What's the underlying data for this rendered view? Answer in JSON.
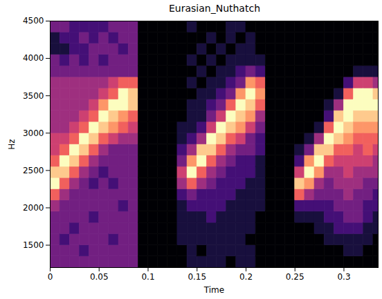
{
  "chart_data": {
    "type": "heatmap",
    "title": "Eurasian_Nuthatch",
    "x_label": "Time",
    "y_label": "Hz",
    "color": "magma",
    "xlim": [
      0,
      0.335
    ],
    "ylim": [
      1200,
      4500
    ],
    "xticks": [
      0,
      0.05,
      0.1,
      0.15,
      0.2,
      0.25,
      0.3
    ],
    "yticks": [
      1500,
      2000,
      2500,
      3000,
      3500,
      4000,
      4500
    ],
    "zlim": [
      0,
      9
    ],
    "x_edges": [
      0,
      0.01,
      0.02,
      0.03,
      0.04,
      0.05,
      0.06,
      0.07,
      0.08,
      0.09,
      0.1,
      0.11,
      0.12,
      0.13,
      0.14,
      0.15,
      0.16,
      0.17,
      0.18,
      0.19,
      0.2,
      0.21,
      0.22,
      0.23,
      0.24,
      0.25,
      0.26,
      0.27,
      0.28,
      0.29,
      0.3,
      0.31,
      0.32,
      0.33,
      0.34
    ],
    "y_edges": [
      1200,
      1350,
      1500,
      1650,
      1800,
      1950,
      2100,
      2250,
      2400,
      2550,
      2700,
      2850,
      3000,
      3150,
      3300,
      3450,
      3600,
      3750,
      3900,
      4050,
      4200,
      4350,
      4500
    ],
    "cells": [
      [
        3,
        3,
        3,
        3,
        3,
        4,
        6,
        9,
        8,
        6,
        5,
        5,
        4,
        4,
        4,
        4,
        4,
        3,
        3,
        1,
        1,
        3
      ],
      [
        3,
        3,
        2,
        3,
        3,
        3,
        4,
        6,
        8,
        9,
        6,
        5,
        4,
        4,
        4,
        4,
        4,
        3,
        2,
        1,
        2,
        3
      ],
      [
        3,
        3,
        3,
        2,
        3,
        3,
        3,
        4,
        6,
        8,
        9,
        6,
        5,
        4,
        4,
        4,
        4,
        3,
        3,
        2,
        2,
        2
      ],
      [
        3,
        2,
        3,
        3,
        3,
        3,
        3,
        3,
        4,
        6,
        8,
        9,
        6,
        5,
        4,
        4,
        4,
        3,
        2,
        2,
        3,
        2
      ],
      [
        3,
        3,
        3,
        3,
        2,
        3,
        3,
        2,
        3,
        4,
        6,
        8,
        9,
        6,
        5,
        4,
        4,
        3,
        3,
        3,
        2,
        2
      ],
      [
        3,
        3,
        3,
        3,
        3,
        3,
        3,
        3,
        2,
        3,
        4,
        6,
        8,
        9,
        7,
        5,
        4,
        3,
        2,
        3,
        3,
        2
      ],
      [
        3,
        3,
        2,
        3,
        3,
        3,
        3,
        2,
        3,
        3,
        3,
        5,
        7,
        8,
        9,
        6,
        5,
        3,
        3,
        3,
        2,
        3
      ],
      [
        3,
        3,
        3,
        3,
        3,
        2,
        3,
        3,
        3,
        3,
        3,
        4,
        6,
        7,
        9,
        9,
        6,
        3,
        3,
        2,
        3,
        3
      ],
      [
        3,
        3,
        3,
        3,
        3,
        3,
        3,
        3,
        3,
        3,
        3,
        4,
        5,
        6,
        8,
        8,
        6,
        3,
        3,
        3,
        3,
        3
      ],
      [
        0,
        0,
        0,
        0,
        0,
        0,
        0,
        0,
        0,
        0,
        0,
        0,
        0,
        0,
        0,
        0,
        0,
        0,
        0,
        0,
        0,
        0
      ],
      [
        0,
        0,
        0,
        0,
        0,
        0,
        0,
        0,
        0,
        0,
        0,
        0,
        0,
        0,
        0,
        0,
        0,
        0,
        0,
        0,
        0,
        0
      ],
      [
        0,
        0,
        0,
        0,
        0,
        0,
        0,
        0,
        0,
        0,
        0,
        0,
        0,
        0,
        0,
        0,
        0,
        0,
        0,
        0,
        0,
        0
      ],
      [
        0,
        0,
        0,
        0,
        0,
        0,
        0,
        0,
        0,
        0,
        0,
        0,
        0,
        0,
        0,
        0,
        0,
        0,
        0,
        0,
        0,
        0
      ],
      [
        0,
        0,
        1,
        1,
        1,
        1,
        2,
        4,
        5,
        3,
        2,
        1,
        1,
        0,
        0,
        0,
        0,
        0,
        0,
        0,
        0,
        0
      ],
      [
        1,
        1,
        1,
        1,
        1,
        2,
        3,
        6,
        9,
        7,
        4,
        2,
        1,
        1,
        1,
        0,
        1,
        0,
        1,
        0,
        0,
        1
      ],
      [
        1,
        0,
        1,
        1,
        1,
        2,
        2,
        4,
        6,
        9,
        8,
        4,
        2,
        1,
        1,
        1,
        0,
        1,
        0,
        1,
        0,
        0
      ],
      [
        1,
        1,
        1,
        1,
        2,
        2,
        2,
        3,
        4,
        6,
        8,
        9,
        5,
        3,
        2,
        1,
        1,
        0,
        1,
        0,
        1,
        0
      ],
      [
        1,
        1,
        1,
        1,
        1,
        2,
        2,
        2,
        3,
        4,
        6,
        8,
        9,
        5,
        3,
        2,
        1,
        1,
        0,
        1,
        0,
        0
      ],
      [
        0,
        1,
        1,
        1,
        1,
        1,
        2,
        2,
        2,
        3,
        4,
        6,
        8,
        9,
        6,
        3,
        2,
        1,
        1,
        0,
        1,
        1
      ],
      [
        1,
        1,
        1,
        1,
        1,
        1,
        1,
        2,
        2,
        2,
        3,
        5,
        7,
        8,
        9,
        7,
        3,
        2,
        1,
        1,
        0,
        1
      ],
      [
        1,
        1,
        0,
        1,
        1,
        1,
        1,
        1,
        2,
        2,
        3,
        3,
        5,
        7,
        8,
        9,
        7,
        3,
        1,
        1,
        1,
        0
      ],
      [
        0,
        0,
        0,
        0,
        0,
        1,
        1,
        1,
        1,
        1,
        2,
        2,
        3,
        4,
        6,
        7,
        6,
        2,
        1,
        0,
        0,
        0
      ],
      [
        0,
        0,
        0,
        0,
        0,
        0,
        0,
        0,
        0,
        0,
        0,
        0,
        0,
        0,
        0,
        0,
        0,
        0,
        0,
        0,
        0,
        0
      ],
      [
        0,
        0,
        0,
        0,
        0,
        0,
        0,
        0,
        0,
        0,
        0,
        0,
        0,
        0,
        0,
        0,
        0,
        0,
        0,
        0,
        0,
        0
      ],
      [
        0,
        0,
        0,
        0,
        0,
        0,
        0,
        0,
        0,
        0,
        0,
        0,
        0,
        0,
        0,
        0,
        0,
        0,
        0,
        0,
        0,
        0
      ],
      [
        0,
        0,
        0,
        0,
        1,
        2,
        6,
        8,
        5,
        2,
        1,
        0,
        0,
        0,
        0,
        0,
        0,
        0,
        0,
        0,
        0,
        0
      ],
      [
        0,
        0,
        0,
        0,
        1,
        2,
        4,
        7,
        9,
        7,
        3,
        1,
        0,
        0,
        0,
        0,
        0,
        0,
        0,
        0,
        0,
        0
      ],
      [
        0,
        0,
        0,
        1,
        1,
        2,
        3,
        4,
        7,
        9,
        8,
        4,
        1,
        0,
        0,
        0,
        0,
        0,
        0,
        0,
        0,
        0
      ],
      [
        0,
        0,
        1,
        1,
        2,
        2,
        3,
        3,
        4,
        6,
        8,
        9,
        6,
        2,
        1,
        0,
        0,
        0,
        0,
        0,
        0,
        0
      ],
      [
        0,
        0,
        1,
        2,
        2,
        3,
        3,
        4,
        4,
        5,
        6,
        8,
        9,
        8,
        4,
        1,
        0,
        0,
        0,
        0,
        0,
        0
      ],
      [
        0,
        1,
        1,
        2,
        3,
        3,
        4,
        4,
        5,
        5,
        6,
        7,
        8,
        9,
        9,
        6,
        2,
        0,
        0,
        0,
        0,
        0
      ],
      [
        0,
        1,
        1,
        2,
        3,
        3,
        3,
        4,
        4,
        5,
        5,
        6,
        7,
        8,
        9,
        9,
        5,
        1,
        0,
        0,
        0,
        0
      ],
      [
        0,
        0,
        1,
        1,
        2,
        2,
        3,
        3,
        4,
        5,
        6,
        6,
        7,
        8,
        9,
        9,
        5,
        1,
        0,
        0,
        0,
        0
      ],
      [
        0,
        0,
        0,
        1,
        1,
        2,
        2,
        3,
        4,
        4,
        5,
        6,
        7,
        8,
        9,
        8,
        4,
        1,
        0,
        0,
        0,
        0
      ]
    ]
  }
}
